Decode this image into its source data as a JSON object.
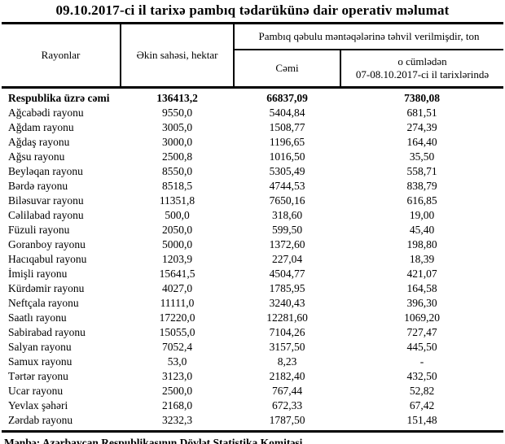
{
  "title": "09.10.2017-ci il tarixə pambıq tədarükünə dair operativ məlumat",
  "table": {
    "columns": {
      "rayonlar": "Rayonlar",
      "ekin_sahesi": "Əkin sahəsi, hektar",
      "pambiq_group": "Pambıq qəbulu məntəqələrinə təhvil verilmişdir, ton",
      "cemi": "Cəmi",
      "o_cumleden_line1": "o cümlədən",
      "o_cumleden_line2": "07-08.10.2017-ci il tarixlərində"
    },
    "total_row": {
      "label": "Respublika üzrə cəmi",
      "values": [
        "136413,2",
        "66837,09",
        "7380,08"
      ]
    },
    "rows": [
      {
        "label": "Ağcabədi rayonu",
        "values": [
          "9550,0",
          "5404,84",
          "681,51"
        ]
      },
      {
        "label": "Ağdam rayonu",
        "values": [
          "3005,0",
          "1508,77",
          "274,39"
        ]
      },
      {
        "label": "Ağdaş rayonu",
        "values": [
          "3000,0",
          "1196,65",
          "164,40"
        ]
      },
      {
        "label": "Ağsu rayonu",
        "values": [
          "2500,8",
          "1016,50",
          "35,50"
        ]
      },
      {
        "label": "Beyləqan rayonu",
        "values": [
          "8550,0",
          "5305,49",
          "558,71"
        ]
      },
      {
        "label": "Bərdə rayonu",
        "values": [
          "8518,5",
          "4744,53",
          "838,79"
        ]
      },
      {
        "label": "Biləsuvar rayonu",
        "values": [
          "11351,8",
          "7650,16",
          "616,85"
        ]
      },
      {
        "label": "Cəlilabad rayonu",
        "values": [
          "500,0",
          "318,60",
          "19,00"
        ]
      },
      {
        "label": "Füzuli rayonu",
        "values": [
          "2050,0",
          "599,50",
          "45,40"
        ]
      },
      {
        "label": "Goranboy rayonu",
        "values": [
          "5000,0",
          "1372,60",
          "198,80"
        ]
      },
      {
        "label": "Hacıqabul rayonu",
        "values": [
          "1203,9",
          "227,04",
          "18,39"
        ]
      },
      {
        "label": "İmişli rayonu",
        "values": [
          "15641,5",
          "4504,77",
          "421,07"
        ]
      },
      {
        "label": "Kürdəmir rayonu",
        "values": [
          "4027,0",
          "1785,95",
          "164,58"
        ]
      },
      {
        "label": "Neftçala rayonu",
        "values": [
          "11111,0",
          "3240,43",
          "396,30"
        ]
      },
      {
        "label": "Saatlı rayonu",
        "values": [
          "17220,0",
          "12281,60",
          "1069,20"
        ]
      },
      {
        "label": "Sabirabad rayonu",
        "values": [
          "15055,0",
          "7104,26",
          "727,47"
        ]
      },
      {
        "label": "Salyan rayonu",
        "values": [
          "7052,4",
          "3157,50",
          "445,50"
        ]
      },
      {
        "label": "Samux rayonu",
        "values": [
          "53,0",
          "8,23",
          "-"
        ]
      },
      {
        "label": "Tərtər rayonu",
        "values": [
          "3123,0",
          "2182,40",
          "432,50"
        ]
      },
      {
        "label": "Ucar rayonu",
        "values": [
          "2500,0",
          "767,44",
          "52,82"
        ]
      },
      {
        "label": "Yevlax şəhəri",
        "values": [
          "2168,0",
          "672,33",
          "67,42"
        ]
      },
      {
        "label": "Zərdab rayonu",
        "values": [
          "3232,3",
          "1787,50",
          "151,48"
        ]
      }
    ]
  },
  "footer": {
    "source": "Mənbə: Azərbaycan Respublikasının Dövlət Statistika Komitəsi"
  }
}
